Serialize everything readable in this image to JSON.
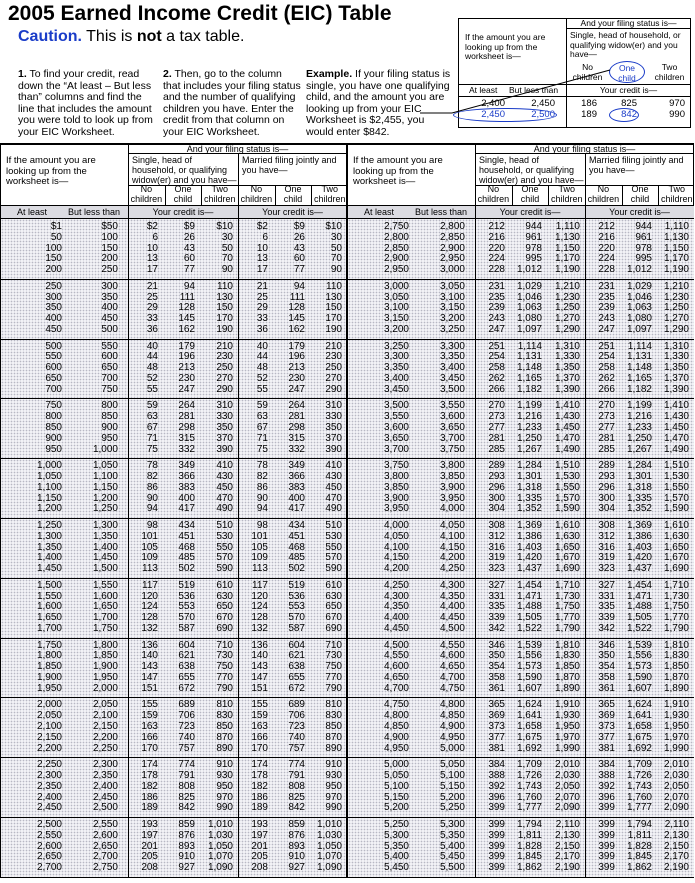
{
  "header": {
    "title": "2005 Earned Income Credit (EIC) Table",
    "caution_label": "Caution.",
    "caution_text": [
      "This is",
      "not",
      "a tax table."
    ]
  },
  "instructions": [
    {
      "num": "1.",
      "text": "To find your credit, read down the “At least – But less than” columns and find the line that includes the amount you were told to look up from your EIC Worksheet."
    },
    {
      "num": "2.",
      "text": "Then, go to the column that includes your filing status and the number of qualifying children you have. Enter the credit from that column on your EIC Worksheet."
    },
    {
      "num": "Example.",
      "text": "If your filing status is single, you have one qualifying child, and the amount you are looking up from your EIC Worksheet is $2,455, you would enter $842."
    }
  ],
  "example_box": {
    "rows": [
      [
        "2,400",
        "2,450",
        "186",
        "825",
        "970"
      ],
      [
        "2,450",
        "2,500",
        "189",
        "842",
        "990"
      ]
    ]
  },
  "table": {
    "header": {
      "amount": "If the amount you are looking up from the worksheet is—",
      "filing_status": "And your filing status is—",
      "single": "Single, head of household, or qualifying widow(er) and you have—",
      "married": "Married filing jointly and you have—",
      "children": [
        "No children",
        "One child",
        "Two children"
      ],
      "at_least": "At least",
      "less_than": "But less than",
      "credit": "Your credit is—"
    },
    "left": [
      [
        "$1",
        "$50",
        "$2",
        "$9",
        "$10",
        "$2",
        "$9",
        "$10"
      ],
      [
        "50",
        "100",
        "6",
        "26",
        "30",
        "6",
        "26",
        "30"
      ],
      [
        "100",
        "150",
        "10",
        "43",
        "50",
        "10",
        "43",
        "50"
      ],
      [
        "150",
        "200",
        "13",
        "60",
        "70",
        "13",
        "60",
        "70"
      ],
      [
        "200",
        "250",
        "17",
        "77",
        "90",
        "17",
        "77",
        "90"
      ],
      [
        "250",
        "300",
        "21",
        "94",
        "110",
        "21",
        "94",
        "110"
      ],
      [
        "300",
        "350",
        "25",
        "111",
        "130",
        "25",
        "111",
        "130"
      ],
      [
        "350",
        "400",
        "29",
        "128",
        "150",
        "29",
        "128",
        "150"
      ],
      [
        "400",
        "450",
        "33",
        "145",
        "170",
        "33",
        "145",
        "170"
      ],
      [
        "450",
        "500",
        "36",
        "162",
        "190",
        "36",
        "162",
        "190"
      ],
      [
        "500",
        "550",
        "40",
        "179",
        "210",
        "40",
        "179",
        "210"
      ],
      [
        "550",
        "600",
        "44",
        "196",
        "230",
        "44",
        "196",
        "230"
      ],
      [
        "600",
        "650",
        "48",
        "213",
        "250",
        "48",
        "213",
        "250"
      ],
      [
        "650",
        "700",
        "52",
        "230",
        "270",
        "52",
        "230",
        "270"
      ],
      [
        "700",
        "750",
        "55",
        "247",
        "290",
        "55",
        "247",
        "290"
      ],
      [
        "750",
        "800",
        "59",
        "264",
        "310",
        "59",
        "264",
        "310"
      ],
      [
        "800",
        "850",
        "63",
        "281",
        "330",
        "63",
        "281",
        "330"
      ],
      [
        "850",
        "900",
        "67",
        "298",
        "350",
        "67",
        "298",
        "350"
      ],
      [
        "900",
        "950",
        "71",
        "315",
        "370",
        "71",
        "315",
        "370"
      ],
      [
        "950",
        "1,000",
        "75",
        "332",
        "390",
        "75",
        "332",
        "390"
      ],
      [
        "1,000",
        "1,050",
        "78",
        "349",
        "410",
        "78",
        "349",
        "410"
      ],
      [
        "1,050",
        "1,100",
        "82",
        "366",
        "430",
        "82",
        "366",
        "430"
      ],
      [
        "1,100",
        "1,150",
        "86",
        "383",
        "450",
        "86",
        "383",
        "450"
      ],
      [
        "1,150",
        "1,200",
        "90",
        "400",
        "470",
        "90",
        "400",
        "470"
      ],
      [
        "1,200",
        "1,250",
        "94",
        "417",
        "490",
        "94",
        "417",
        "490"
      ],
      [
        "1,250",
        "1,300",
        "98",
        "434",
        "510",
        "98",
        "434",
        "510"
      ],
      [
        "1,300",
        "1,350",
        "101",
        "451",
        "530",
        "101",
        "451",
        "530"
      ],
      [
        "1,350",
        "1,400",
        "105",
        "468",
        "550",
        "105",
        "468",
        "550"
      ],
      [
        "1,400",
        "1,450",
        "109",
        "485",
        "570",
        "109",
        "485",
        "570"
      ],
      [
        "1,450",
        "1,500",
        "113",
        "502",
        "590",
        "113",
        "502",
        "590"
      ],
      [
        "1,500",
        "1,550",
        "117",
        "519",
        "610",
        "117",
        "519",
        "610"
      ],
      [
        "1,550",
        "1,600",
        "120",
        "536",
        "630",
        "120",
        "536",
        "630"
      ],
      [
        "1,600",
        "1,650",
        "124",
        "553",
        "650",
        "124",
        "553",
        "650"
      ],
      [
        "1,650",
        "1,700",
        "128",
        "570",
        "670",
        "128",
        "570",
        "670"
      ],
      [
        "1,700",
        "1,750",
        "132",
        "587",
        "690",
        "132",
        "587",
        "690"
      ],
      [
        "1,750",
        "1,800",
        "136",
        "604",
        "710",
        "136",
        "604",
        "710"
      ],
      [
        "1,800",
        "1,850",
        "140",
        "621",
        "730",
        "140",
        "621",
        "730"
      ],
      [
        "1,850",
        "1,900",
        "143",
        "638",
        "750",
        "143",
        "638",
        "750"
      ],
      [
        "1,900",
        "1,950",
        "147",
        "655",
        "770",
        "147",
        "655",
        "770"
      ],
      [
        "1,950",
        "2,000",
        "151",
        "672",
        "790",
        "151",
        "672",
        "790"
      ],
      [
        "2,000",
        "2,050",
        "155",
        "689",
        "810",
        "155",
        "689",
        "810"
      ],
      [
        "2,050",
        "2,100",
        "159",
        "706",
        "830",
        "159",
        "706",
        "830"
      ],
      [
        "2,100",
        "2,150",
        "163",
        "723",
        "850",
        "163",
        "723",
        "850"
      ],
      [
        "2,150",
        "2,200",
        "166",
        "740",
        "870",
        "166",
        "740",
        "870"
      ],
      [
        "2,200",
        "2,250",
        "170",
        "757",
        "890",
        "170",
        "757",
        "890"
      ],
      [
        "2,250",
        "2,300",
        "174",
        "774",
        "910",
        "174",
        "774",
        "910"
      ],
      [
        "2,300",
        "2,350",
        "178",
        "791",
        "930",
        "178",
        "791",
        "930"
      ],
      [
        "2,350",
        "2,400",
        "182",
        "808",
        "950",
        "182",
        "808",
        "950"
      ],
      [
        "2,400",
        "2,450",
        "186",
        "825",
        "970",
        "186",
        "825",
        "970"
      ],
      [
        "2,450",
        "2,500",
        "189",
        "842",
        "990",
        "189",
        "842",
        "990"
      ],
      [
        "2,500",
        "2,550",
        "193",
        "859",
        "1,010",
        "193",
        "859",
        "1,010"
      ],
      [
        "2,550",
        "2,600",
        "197",
        "876",
        "1,030",
        "197",
        "876",
        "1,030"
      ],
      [
        "2,600",
        "2,650",
        "201",
        "893",
        "1,050",
        "201",
        "893",
        "1,050"
      ],
      [
        "2,650",
        "2,700",
        "205",
        "910",
        "1,070",
        "205",
        "910",
        "1,070"
      ],
      [
        "2,700",
        "2,750",
        "208",
        "927",
        "1,090",
        "208",
        "927",
        "1,090"
      ]
    ],
    "right": [
      [
        "2,750",
        "2,800",
        "212",
        "944",
        "1,110",
        "212",
        "944",
        "1,110"
      ],
      [
        "2,800",
        "2,850",
        "216",
        "961",
        "1,130",
        "216",
        "961",
        "1,130"
      ],
      [
        "2,850",
        "2,900",
        "220",
        "978",
        "1,150",
        "220",
        "978",
        "1,150"
      ],
      [
        "2,900",
        "2,950",
        "224",
        "995",
        "1,170",
        "224",
        "995",
        "1,170"
      ],
      [
        "2,950",
        "3,000",
        "228",
        "1,012",
        "1,190",
        "228",
        "1,012",
        "1,190"
      ],
      [
        "3,000",
        "3,050",
        "231",
        "1,029",
        "1,210",
        "231",
        "1,029",
        "1,210"
      ],
      [
        "3,050",
        "3,100",
        "235",
        "1,046",
        "1,230",
        "235",
        "1,046",
        "1,230"
      ],
      [
        "3,100",
        "3,150",
        "239",
        "1,063",
        "1,250",
        "239",
        "1,063",
        "1,250"
      ],
      [
        "3,150",
        "3,200",
        "243",
        "1,080",
        "1,270",
        "243",
        "1,080",
        "1,270"
      ],
      [
        "3,200",
        "3,250",
        "247",
        "1,097",
        "1,290",
        "247",
        "1,097",
        "1,290"
      ],
      [
        "3,250",
        "3,300",
        "251",
        "1,114",
        "1,310",
        "251",
        "1,114",
        "1,310"
      ],
      [
        "3,300",
        "3,350",
        "254",
        "1,131",
        "1,330",
        "254",
        "1,131",
        "1,330"
      ],
      [
        "3,350",
        "3,400",
        "258",
        "1,148",
        "1,350",
        "258",
        "1,148",
        "1,350"
      ],
      [
        "3,400",
        "3,450",
        "262",
        "1,165",
        "1,370",
        "262",
        "1,165",
        "1,370"
      ],
      [
        "3,450",
        "3,500",
        "266",
        "1,182",
        "1,390",
        "266",
        "1,182",
        "1,390"
      ],
      [
        "3,500",
        "3,550",
        "270",
        "1,199",
        "1,410",
        "270",
        "1,199",
        "1,410"
      ],
      [
        "3,550",
        "3,600",
        "273",
        "1,216",
        "1,430",
        "273",
        "1,216",
        "1,430"
      ],
      [
        "3,600",
        "3,650",
        "277",
        "1,233",
        "1,450",
        "277",
        "1,233",
        "1,450"
      ],
      [
        "3,650",
        "3,700",
        "281",
        "1,250",
        "1,470",
        "281",
        "1,250",
        "1,470"
      ],
      [
        "3,700",
        "3,750",
        "285",
        "1,267",
        "1,490",
        "285",
        "1,267",
        "1,490"
      ],
      [
        "3,750",
        "3,800",
        "289",
        "1,284",
        "1,510",
        "289",
        "1,284",
        "1,510"
      ],
      [
        "3,800",
        "3,850",
        "293",
        "1,301",
        "1,530",
        "293",
        "1,301",
        "1,530"
      ],
      [
        "3,850",
        "3,900",
        "296",
        "1,318",
        "1,550",
        "296",
        "1,318",
        "1,550"
      ],
      [
        "3,900",
        "3,950",
        "300",
        "1,335",
        "1,570",
        "300",
        "1,335",
        "1,570"
      ],
      [
        "3,950",
        "4,000",
        "304",
        "1,352",
        "1,590",
        "304",
        "1,352",
        "1,590"
      ],
      [
        "4,000",
        "4,050",
        "308",
        "1,369",
        "1,610",
        "308",
        "1,369",
        "1,610"
      ],
      [
        "4,050",
        "4,100",
        "312",
        "1,386",
        "1,630",
        "312",
        "1,386",
        "1,630"
      ],
      [
        "4,100",
        "4,150",
        "316",
        "1,403",
        "1,650",
        "316",
        "1,403",
        "1,650"
      ],
      [
        "4,150",
        "4,200",
        "319",
        "1,420",
        "1,670",
        "319",
        "1,420",
        "1,670"
      ],
      [
        "4,200",
        "4,250",
        "323",
        "1,437",
        "1,690",
        "323",
        "1,437",
        "1,690"
      ],
      [
        "4,250",
        "4,300",
        "327",
        "1,454",
        "1,710",
        "327",
        "1,454",
        "1,710"
      ],
      [
        "4,300",
        "4,350",
        "331",
        "1,471",
        "1,730",
        "331",
        "1,471",
        "1,730"
      ],
      [
        "4,350",
        "4,400",
        "335",
        "1,488",
        "1,750",
        "335",
        "1,488",
        "1,750"
      ],
      [
        "4,400",
        "4,450",
        "339",
        "1,505",
        "1,770",
        "339",
        "1,505",
        "1,770"
      ],
      [
        "4,450",
        "4,500",
        "342",
        "1,522",
        "1,790",
        "342",
        "1,522",
        "1,790"
      ],
      [
        "4,500",
        "4,550",
        "346",
        "1,539",
        "1,810",
        "346",
        "1,539",
        "1,810"
      ],
      [
        "4,550",
        "4,600",
        "350",
        "1,556",
        "1,830",
        "350",
        "1,556",
        "1,830"
      ],
      [
        "4,600",
        "4,650",
        "354",
        "1,573",
        "1,850",
        "354",
        "1,573",
        "1,850"
      ],
      [
        "4,650",
        "4,700",
        "358",
        "1,590",
        "1,870",
        "358",
        "1,590",
        "1,870"
      ],
      [
        "4,700",
        "4,750",
        "361",
        "1,607",
        "1,890",
        "361",
        "1,607",
        "1,890"
      ],
      [
        "4,750",
        "4,800",
        "365",
        "1,624",
        "1,910",
        "365",
        "1,624",
        "1,910"
      ],
      [
        "4,800",
        "4,850",
        "369",
        "1,641",
        "1,930",
        "369",
        "1,641",
        "1,930"
      ],
      [
        "4,850",
        "4,900",
        "373",
        "1,658",
        "1,950",
        "373",
        "1,658",
        "1,950"
      ],
      [
        "4,900",
        "4,950",
        "377",
        "1,675",
        "1,970",
        "377",
        "1,675",
        "1,970"
      ],
      [
        "4,950",
        "5,000",
        "381",
        "1,692",
        "1,990",
        "381",
        "1,692",
        "1,990"
      ],
      [
        "5,000",
        "5,050",
        "384",
        "1,709",
        "2,010",
        "384",
        "1,709",
        "2,010"
      ],
      [
        "5,050",
        "5,100",
        "388",
        "1,726",
        "2,030",
        "388",
        "1,726",
        "2,030"
      ],
      [
        "5,100",
        "5,150",
        "392",
        "1,743",
        "2,050",
        "392",
        "1,743",
        "2,050"
      ],
      [
        "5,150",
        "5,200",
        "396",
        "1,760",
        "2,070",
        "396",
        "1,760",
        "2,070"
      ],
      [
        "5,200",
        "5,250",
        "399",
        "1,777",
        "2,090",
        "399",
        "1,777",
        "2,090"
      ],
      [
        "5,250",
        "5,300",
        "399",
        "1,794",
        "2,110",
        "399",
        "1,794",
        "2,110"
      ],
      [
        "5,300",
        "5,350",
        "399",
        "1,811",
        "2,130",
        "399",
        "1,811",
        "2,130"
      ],
      [
        "5,350",
        "5,400",
        "399",
        "1,828",
        "2,150",
        "399",
        "1,828",
        "2,150"
      ],
      [
        "5,400",
        "5,450",
        "399",
        "1,845",
        "2,170",
        "399",
        "1,845",
        "2,170"
      ],
      [
        "5,450",
        "5,500",
        "399",
        "1,862",
        "2,190",
        "399",
        "1,862",
        "2,190"
      ]
    ]
  }
}
